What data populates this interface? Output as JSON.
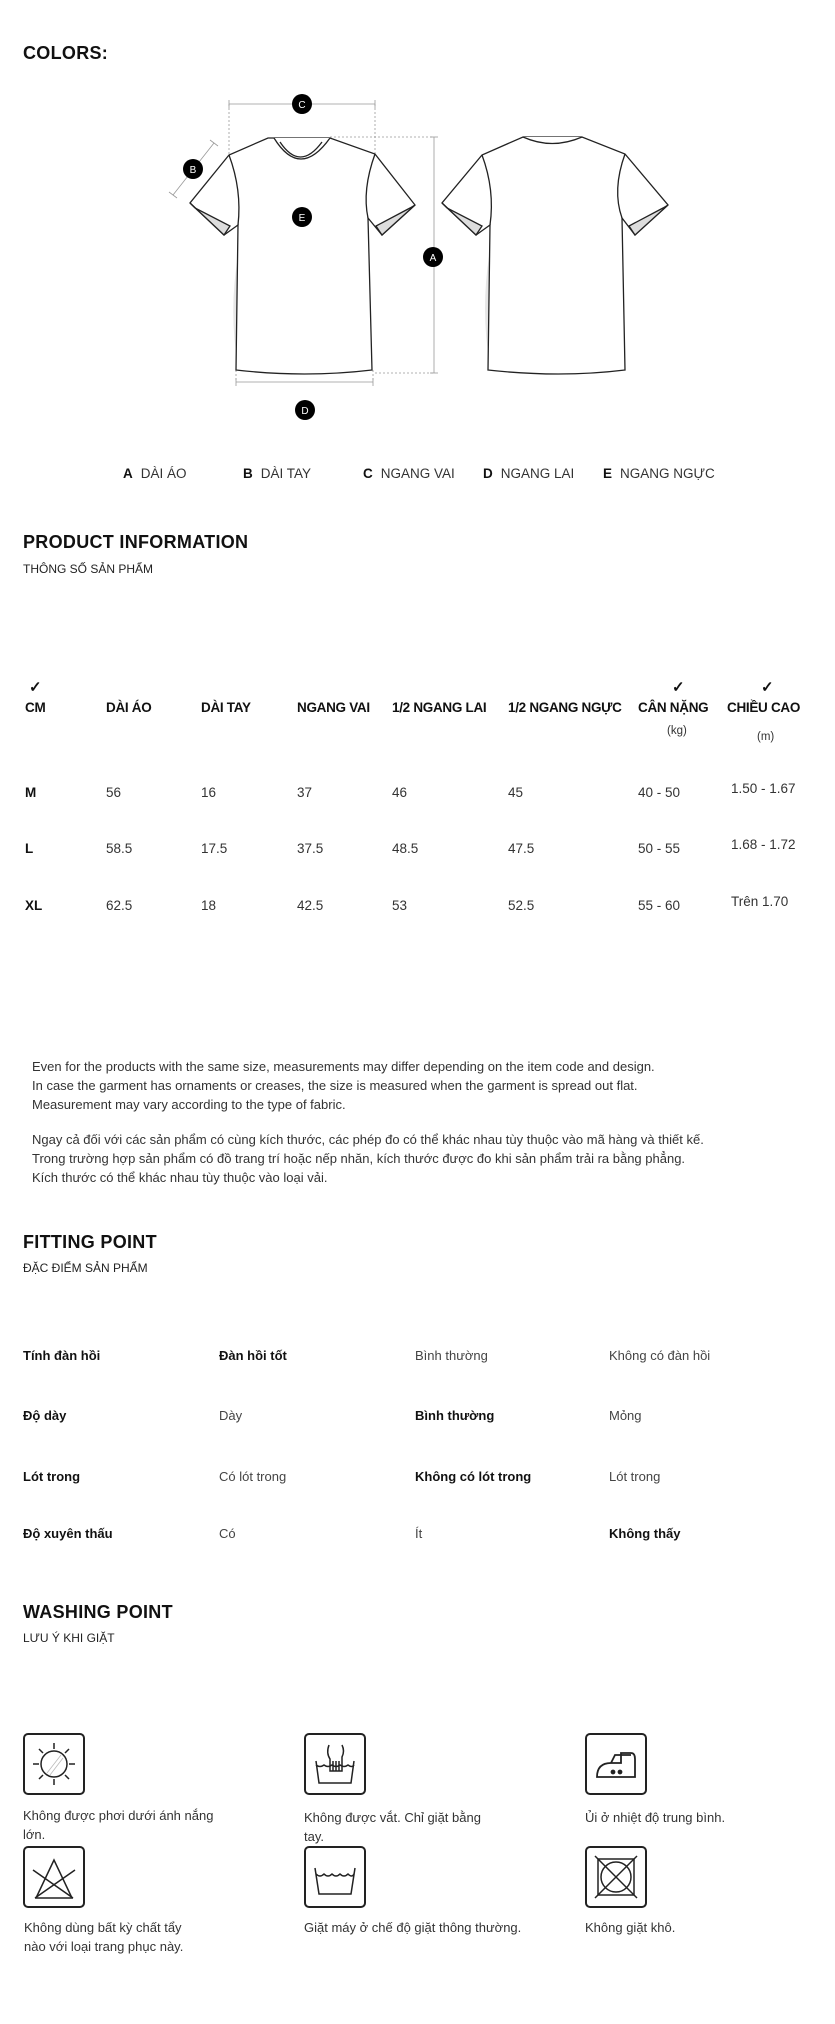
{
  "colors_section": {
    "title": "COLORS:"
  },
  "diagram": {
    "markers": [
      "A",
      "B",
      "C",
      "D",
      "E"
    ],
    "legend": [
      {
        "key": "A",
        "label": "DÀI ÁO"
      },
      {
        "key": "B",
        "label": "DÀI TAY"
      },
      {
        "key": "C",
        "label": "NGANG VAI"
      },
      {
        "key": "D",
        "label": "NGANG LAI"
      },
      {
        "key": "E",
        "label": "NGANG NGỰC"
      }
    ]
  },
  "product_info": {
    "title": "PRODUCT INFORMATION",
    "subtitle": "THÔNG SỐ SẢN PHẨM",
    "check_icon": "check-icon",
    "headers": [
      "CM",
      "DÀI ÁO",
      "DÀI TAY",
      "NGANG VAI",
      "1/2 NGANG LAI",
      "1/2 NGANG NGỰC",
      "CÂN NẶNG",
      "CHIỀU CAO"
    ],
    "units": {
      "weight": "(kg)",
      "height": "(m)"
    },
    "rows": [
      [
        "M",
        "56",
        "16",
        "37",
        "46",
        "45",
        "40 - 50",
        "1.50 - 1.67"
      ],
      [
        "L",
        "58.5",
        "17.5",
        "37.5",
        "48.5",
        "47.5",
        "50 - 55",
        "1.68 - 1.72"
      ],
      [
        "XL",
        "62.5",
        "18",
        "42.5",
        "53",
        "52.5",
        "55 - 60",
        "Trên 1.70"
      ]
    ]
  },
  "notes": {
    "en": [
      "Even for the products with the same size, measurements may differ depending on the item code and design.",
      "In case the garment has ornaments or creases, the size is measured when the garment is spread out flat.",
      "Measurement may vary according to the type of fabric."
    ],
    "vi": [
      "Ngay cả đối với các sản phẩm có cùng kích thước, các phép đo có thể khác nhau tùy thuộc vào mã hàng và thiết kế.",
      "Trong trường hợp sản phẩm có đồ trang trí hoặc nếp nhăn, kích thước được đo khi sản phẩm trải ra bằng phẳng.",
      "Kích thước có thể khác nhau tùy thuộc vào loại vải."
    ]
  },
  "fitting": {
    "title": "FITTING POINT",
    "subtitle": "ĐẶC ĐIỂM SẢN PHẨM",
    "rows": [
      {
        "label": "Tính đàn hồi",
        "options": [
          "Đàn hồi tốt",
          "Bình thường",
          "Không có đàn hồi"
        ],
        "selected": 0
      },
      {
        "label": "Độ dày",
        "options": [
          "Dày",
          "Bình thường",
          "Mỏng"
        ],
        "selected": 1
      },
      {
        "label": "Lót trong",
        "options": [
          "Có lót trong",
          "Không có lót trong",
          "Lót trong"
        ],
        "selected": 1
      },
      {
        "label": "Độ xuyên thấu",
        "options": [
          "Có",
          "Ít",
          "Không thấy"
        ],
        "selected": 2
      }
    ]
  },
  "washing": {
    "title": "WASHING POINT",
    "subtitle": "LƯU Ý KHI GIẶT",
    "items": [
      {
        "icon": "no-sun-dry-icon",
        "label": "Không được phơi dưới ánh nắng lớn."
      },
      {
        "icon": "hand-wash-icon",
        "label": "Không được vắt. Chỉ giặt bằng tay."
      },
      {
        "icon": "iron-medium-icon",
        "label": "Ủi ở nhiệt độ trung bình."
      },
      {
        "icon": "no-bleach-icon",
        "label": "Không dùng bất kỳ chất tẩy nào với loại trang phục này."
      },
      {
        "icon": "machine-wash-icon",
        "label": "Giặt máy ở chế độ giặt thông thường."
      },
      {
        "icon": "no-dry-clean-icon",
        "label": "Không giặt khô."
      }
    ]
  }
}
